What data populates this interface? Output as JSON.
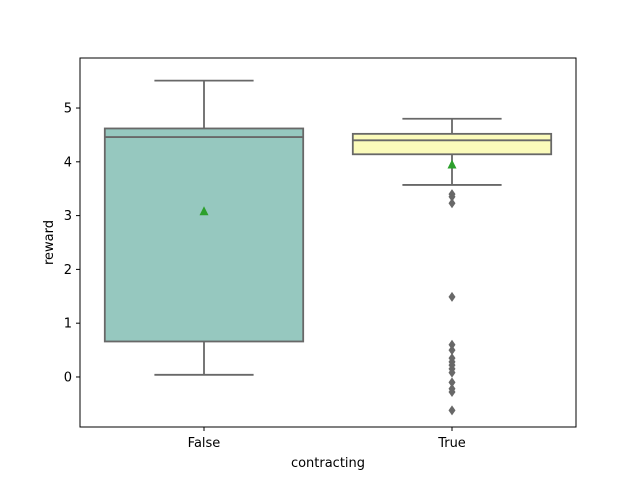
{
  "chart_data": {
    "type": "box",
    "xlabel": "contracting",
    "ylabel": "reward",
    "categories": [
      "False",
      "True"
    ],
    "ylim": [
      -0.93,
      5.93
    ],
    "yticks": [
      0,
      1,
      2,
      3,
      4,
      5
    ],
    "box_edge_color": "#686868",
    "mean_marker_color": "#2ca02c",
    "boxes": [
      {
        "category": "False",
        "fill": "#96c8bf",
        "whisker_low": 0.04,
        "q1": 0.66,
        "median": 4.46,
        "q3": 4.62,
        "whisker_high": 5.51,
        "mean": 3.08,
        "outliers": []
      },
      {
        "category": "True",
        "fill": "#fbfbbb",
        "whisker_low": 3.57,
        "q1": 4.14,
        "median": 4.4,
        "q3": 4.52,
        "whisker_high": 4.8,
        "mean": 3.95,
        "outliers": [
          3.4,
          3.35,
          3.23,
          1.49,
          0.6,
          0.5,
          0.35,
          0.28,
          0.22,
          0.15,
          0.08,
          -0.1,
          -0.22,
          -0.28,
          -0.62
        ]
      }
    ]
  }
}
